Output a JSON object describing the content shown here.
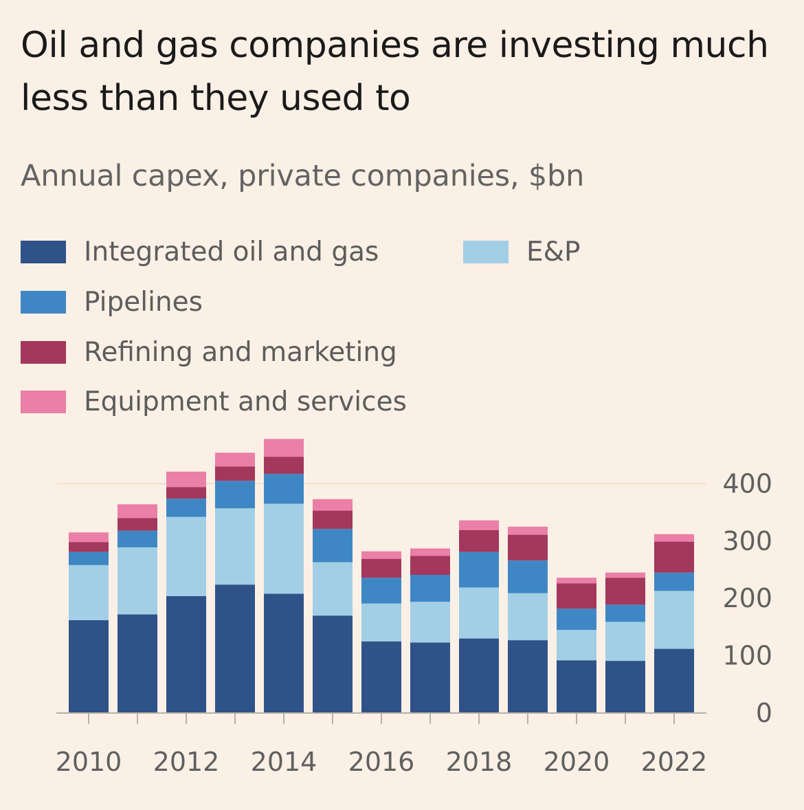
{
  "title": "Oil and gas companies are investing much less than they used to",
  "subtitle": "Annual capex, private companies, $bn",
  "legend": [
    {
      "label": "Integrated oil and gas",
      "color": "#2f5289"
    },
    {
      "label": "Pipelines",
      "color": "#3f87c4"
    },
    {
      "label": "Refining and marketing",
      "color": "#a3375c"
    },
    {
      "label": "Equipment and services",
      "color": "#ea7fa7"
    },
    {
      "label": "E&P",
      "color": "#a2cfe6"
    }
  ],
  "chart_data": {
    "type": "bar",
    "stacked": true,
    "categories": [
      "2010",
      "2011",
      "2012",
      "2013",
      "2014",
      "2015",
      "2016",
      "2017",
      "2018",
      "2019",
      "2020",
      "2021",
      "2022"
    ],
    "x_tick_labels": [
      "2010",
      "2012",
      "2014",
      "2016",
      "2018",
      "2020",
      "2022"
    ],
    "series": [
      {
        "name": "Integrated oil and gas",
        "color": "#2f5289",
        "values": [
          162,
          172,
          204,
          224,
          208,
          170,
          125,
          123,
          130,
          127,
          92,
          91,
          112
        ]
      },
      {
        "name": "E&P",
        "color": "#a2cfe6",
        "values": [
          96,
          117,
          138,
          133,
          157,
          93,
          66,
          71,
          89,
          82,
          53,
          68,
          101
        ]
      },
      {
        "name": "Pipelines",
        "color": "#3f87c4",
        "values": [
          23,
          29,
          32,
          48,
          52,
          58,
          45,
          47,
          62,
          57,
          37,
          30,
          32
        ]
      },
      {
        "name": "Refining and marketing",
        "color": "#a3375c",
        "values": [
          17,
          22,
          20,
          25,
          30,
          32,
          33,
          33,
          38,
          45,
          44,
          47,
          54
        ]
      },
      {
        "name": "Equipment and services",
        "color": "#ea7fa7",
        "values": [
          17,
          24,
          27,
          24,
          31,
          20,
          13,
          13,
          17,
          14,
          10,
          9,
          13
        ]
      }
    ],
    "y_ticks": [
      0,
      100,
      200,
      300,
      400
    ],
    "ylim": [
      0,
      480
    ],
    "y_axis_side": "right",
    "grid": "only at 400",
    "legend_position": "top-left"
  }
}
